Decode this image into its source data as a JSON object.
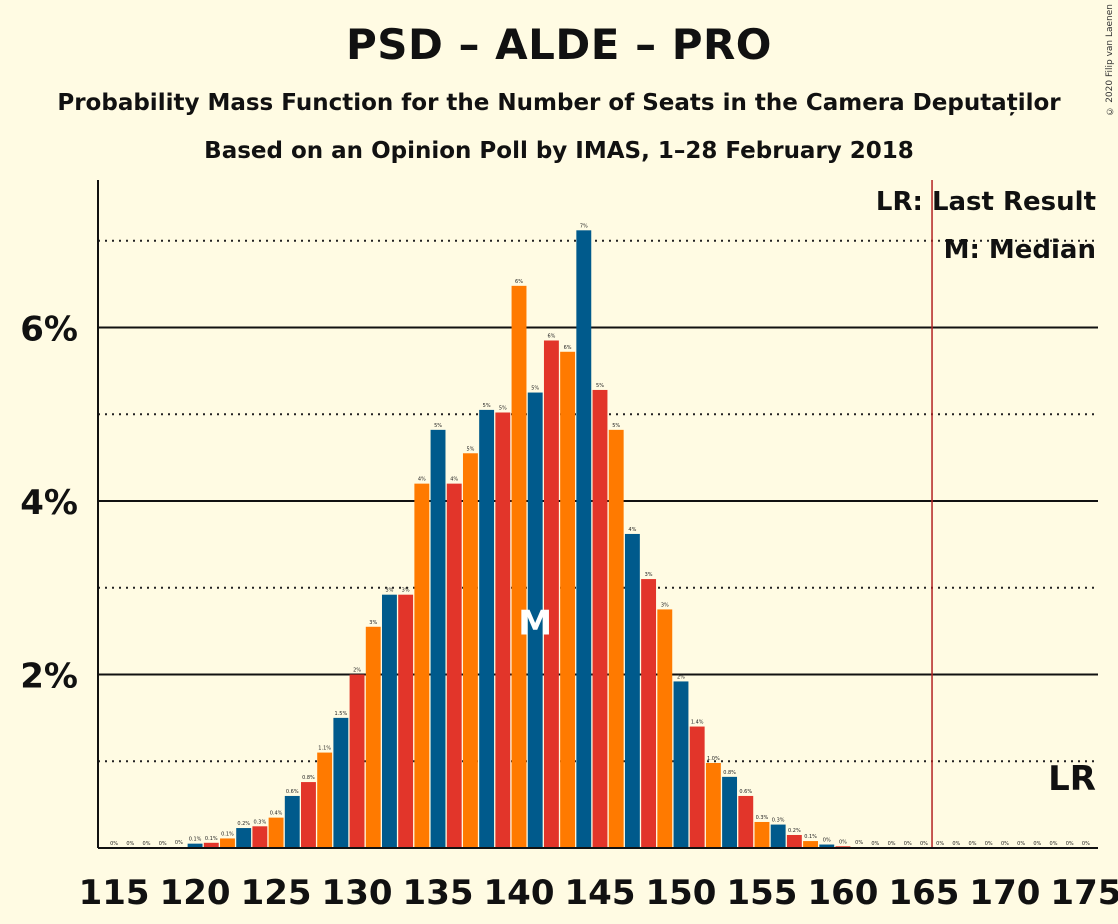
{
  "title": "PSD – ALDE – PRO",
  "subtitle": "Probability Mass Function for the Number of Seats in the Camera Deputaților",
  "subtitle2": "Based on an Opinion Poll by IMAS, 1–28 February 2018",
  "copyright": "© 2020 Filip van Laenen",
  "colors": {
    "background": "#FFFBE3",
    "red": "#E2352A",
    "orange": "#FF7A00",
    "blue": "#005A8C",
    "lr_line": "#B22222"
  },
  "legend": {
    "lr": "LR: Last Result",
    "median": "M: Median"
  },
  "markers": {
    "median_label": "M",
    "last_result_label": "LR"
  },
  "chart_data": {
    "type": "bar",
    "x": [
      115,
      116,
      117,
      118,
      119,
      120,
      121,
      122,
      123,
      124,
      125,
      126,
      127,
      128,
      129,
      130,
      131,
      132,
      133,
      134,
      135,
      136,
      137,
      138,
      139,
      140,
      141,
      142,
      143,
      144,
      145,
      146,
      147,
      148,
      149,
      150,
      151,
      152,
      153,
      154,
      155,
      156,
      157,
      158,
      159,
      160,
      161,
      162,
      163,
      164,
      165,
      166,
      167,
      168,
      169,
      170,
      171,
      172,
      173,
      174,
      175
    ],
    "values": [
      0,
      0,
      0,
      0,
      0.01,
      0.05,
      0.06,
      0.11,
      0.23,
      0.25,
      0.35,
      0.6,
      0.76,
      1.1,
      1.5,
      2.0,
      2.55,
      2.92,
      2.92,
      4.2,
      4.82,
      4.2,
      4.55,
      5.05,
      5.02,
      6.48,
      5.25,
      5.85,
      5.72,
      7.12,
      5.28,
      4.82,
      3.62,
      3.1,
      2.75,
      1.92,
      1.4,
      0.98,
      0.82,
      0.6,
      0.3,
      0.27,
      0.15,
      0.08,
      0.04,
      0.02,
      0.01,
      0,
      0,
      0,
      0,
      0,
      0,
      0,
      0,
      0,
      0,
      0,
      0,
      0,
      0
    ],
    "value_labels": [
      "0%",
      "0%",
      "0%",
      "0%",
      "0%",
      "0.1%",
      "0.1%",
      "0.1%",
      "0.2%",
      "0.3%",
      "0.4%",
      "0.6%",
      "0.8%",
      "1.1%",
      "1.5%",
      "2%",
      "3%",
      "3%",
      "3%",
      "4%",
      "5%",
      "4%",
      "5%",
      "5%",
      "5%",
      "6%",
      "5%",
      "6%",
      "6%",
      "7%",
      "5%",
      "5%",
      "4%",
      "3%",
      "3%",
      "2%",
      "1.4%",
      "1.0%",
      "0.8%",
      "0.6%",
      "0.3%",
      "0.3%",
      "0.2%",
      "0.1%",
      "0%",
      "0%",
      "0%",
      "0%",
      "0%",
      "0%",
      "0%",
      "0%",
      "0%",
      "0%",
      "0%",
      "0%",
      "0%",
      "0%",
      "0%",
      "0%",
      "0%"
    ],
    "bar_color_cycle": [
      "red",
      "orange",
      "blue"
    ],
    "median": 141,
    "last_result": 166,
    "ylim": [
      0,
      7.7
    ],
    "yticks": [
      2,
      4,
      6
    ],
    "ytick_labels": [
      "2%",
      "4%",
      "6%"
    ],
    "ygrid_dotted": [
      1,
      3,
      5,
      7
    ],
    "xticks": [
      115,
      120,
      125,
      130,
      135,
      140,
      145,
      150,
      155,
      160,
      165,
      170,
      175
    ],
    "xtick_labels": [
      "115",
      "120",
      "125",
      "130",
      "135",
      "140",
      "145",
      "150",
      "155",
      "160",
      "165",
      "170",
      "175"
    ],
    "grid": true,
    "legend_position": "top-right"
  }
}
